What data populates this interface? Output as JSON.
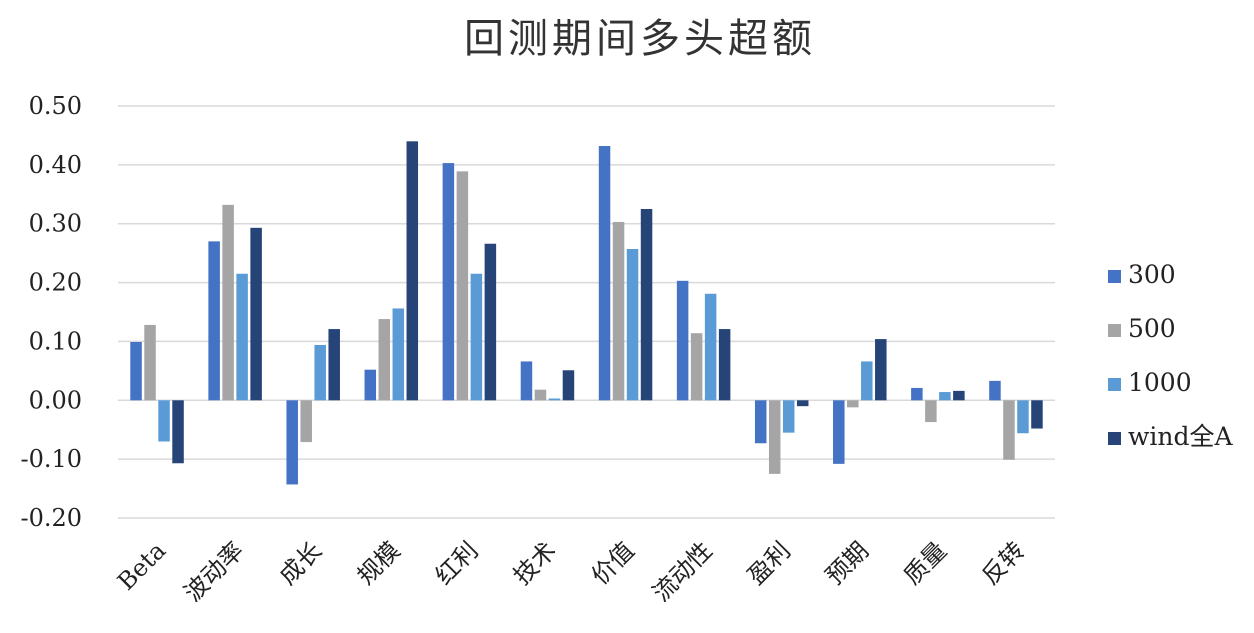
{
  "chart_data": {
    "type": "bar",
    "title": "回测期间多头超额",
    "categories": [
      "Beta",
      "波动率",
      "成长",
      "规模",
      "红利",
      "技术",
      "价值",
      "流动性",
      "盈利",
      "预期",
      "质量",
      "反转"
    ],
    "series": [
      {
        "name": "300",
        "color": "#4472C4",
        "values": [
          0.099,
          0.27,
          -0.143,
          0.052,
          0.403,
          0.066,
          0.432,
          0.203,
          -0.073,
          -0.108,
          0.021,
          0.033
        ]
      },
      {
        "name": "500",
        "color": "#A5A5A5",
        "values": [
          0.128,
          0.332,
          -0.071,
          0.138,
          0.389,
          0.018,
          0.303,
          0.114,
          -0.125,
          -0.012,
          -0.037,
          -0.101
        ]
      },
      {
        "name": "1000",
        "color": "#5B9BD5",
        "values": [
          -0.07,
          0.215,
          0.094,
          0.156,
          0.215,
          0.003,
          0.257,
          0.181,
          -0.055,
          0.066,
          0.014,
          -0.056
        ]
      },
      {
        "name": "wind全A",
        "color": "#264478",
        "values": [
          -0.107,
          0.293,
          0.121,
          0.44,
          0.266,
          0.051,
          0.325,
          0.121,
          -0.01,
          0.104,
          0.016,
          -0.048
        ]
      }
    ],
    "yticks": [
      "0.50",
      "0.40",
      "0.30",
      "0.20",
      "0.10",
      "0.00",
      "-0.10",
      "-0.20"
    ],
    "ylim": [
      -0.2,
      0.5
    ],
    "grid": true,
    "legend_position": "right"
  }
}
